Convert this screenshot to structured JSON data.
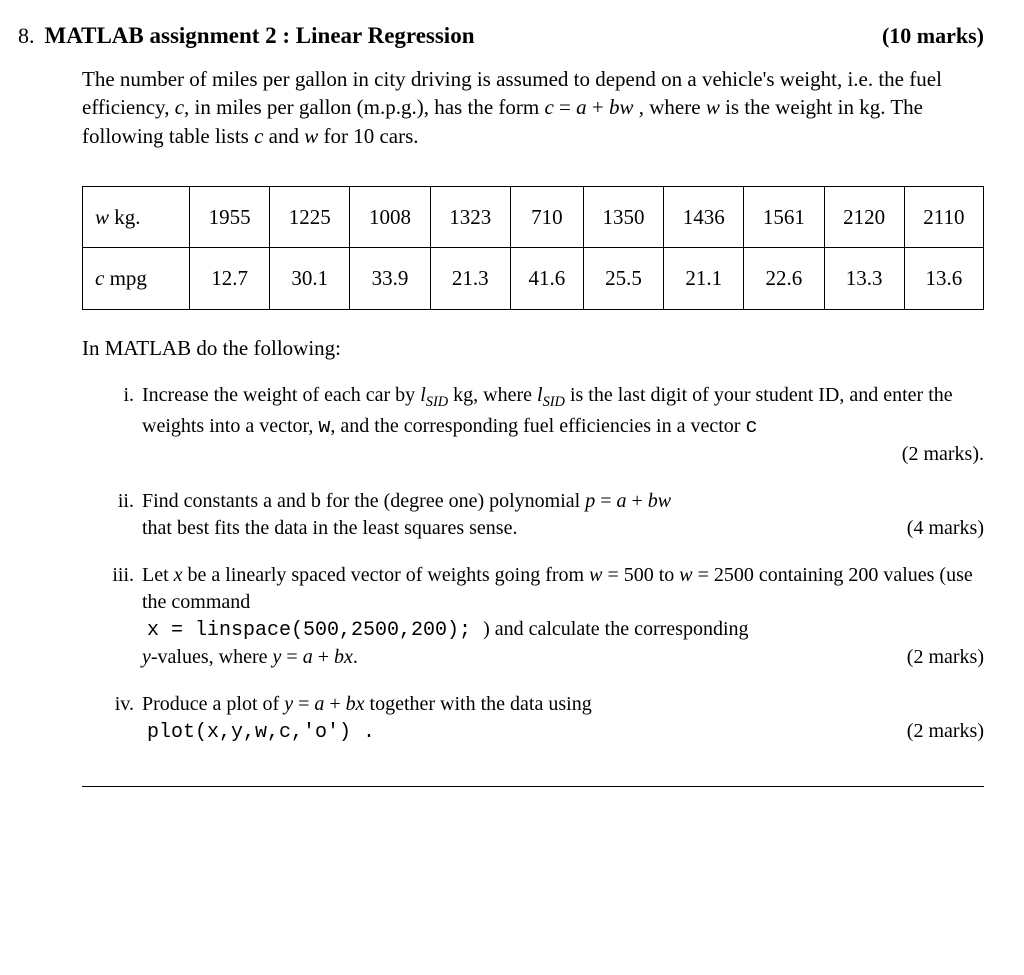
{
  "question_number": "8.",
  "title": "MATLAB assignment 2 : Linear Regression",
  "total_marks": "(10 marks)",
  "intro_1": "The number of miles per gallon in city driving is assumed to depend on a vehicle's weight, i.e. the fuel efficiency, ",
  "intro_c": "c",
  "intro_2": ", in miles per gallon (m.p.g.), has the form  ",
  "intro_eq_lhs": "c",
  "intro_eq_eq": " = ",
  "intro_eq_rhs_a": "a",
  "intro_eq_plus": " + ",
  "intro_eq_rhs_bw": "bw",
  "intro_3": " , where ",
  "intro_w": "w",
  "intro_4": " is the weight in kg. The following table lists ",
  "intro_c2": "c",
  "intro_5": " and ",
  "intro_w2": "w",
  "intro_6": " for 10 cars.",
  "table": {
    "row1_label_var": "w",
    "row1_label_unit": " kg.",
    "row1": [
      "1955",
      "1225",
      "1008",
      "1323",
      "710",
      "1350",
      "1436",
      "1561",
      "2120",
      "2110"
    ],
    "row2_label_var": "c",
    "row2_label_unit": " mpg",
    "row2": [
      "12.7",
      "30.1",
      "33.9",
      "21.3",
      "41.6",
      "25.5",
      "21.1",
      "22.6",
      "13.3",
      "13.6"
    ]
  },
  "instr": "In MATLAB do the following:",
  "items": {
    "i": {
      "roman": "i.",
      "t1": "Increase the weight of each car by ",
      "lsid1": "l",
      "lsid_sub1": "SID",
      "t2": " kg, where ",
      "lsid2": "l",
      "lsid_sub2": "SID",
      "t3": " is the last digit of your student ID, and enter the weights into a vector, ",
      "vec_w": "w",
      "t4": ", and the corresponding fuel efficiencies in a vector ",
      "vec_c": "c",
      "marks": "(2 marks)."
    },
    "ii": {
      "roman": "ii.",
      "t1": "Find constants a and b for the (degree one) polynomial ",
      "eq_p": "p",
      "eq_eq": " = ",
      "eq_a": "a",
      "eq_plus": " + ",
      "eq_bw": "bw",
      "t2": " that best fits the data in the least squares sense.",
      "marks": "(4 marks)"
    },
    "iii": {
      "roman": "iii.",
      "t1": "Let ",
      "var_x": "x",
      "t2": " be a linearly spaced vector of weights going from ",
      "var_w1": "w",
      "eq1": " = 500",
      "t3": " to ",
      "var_w2": "w",
      "eq2": " = 2500",
      "t4": " containing 200 values (use the command",
      "code": "x = linspace(500,2500,200); ",
      "t5": ") and calculate the corresponding ",
      "var_y": "y",
      "t6": "-values, where ",
      "eq_y": "y",
      "eq_eq": " = ",
      "eq_a": "a",
      "eq_plus": " + ",
      "eq_bx": "bx",
      "t7": ".",
      "marks": "(2 marks)"
    },
    "iv": {
      "roman": "iv.",
      "t1": "Produce a plot of ",
      "eq_y": "y",
      "eq_eq": " = ",
      "eq_a": "a",
      "eq_plus": " + ",
      "eq_bx": "bx",
      "t2": " together with the data using",
      "code": "plot(x,y,w,c,'o') .",
      "marks": "(2 marks)"
    }
  }
}
